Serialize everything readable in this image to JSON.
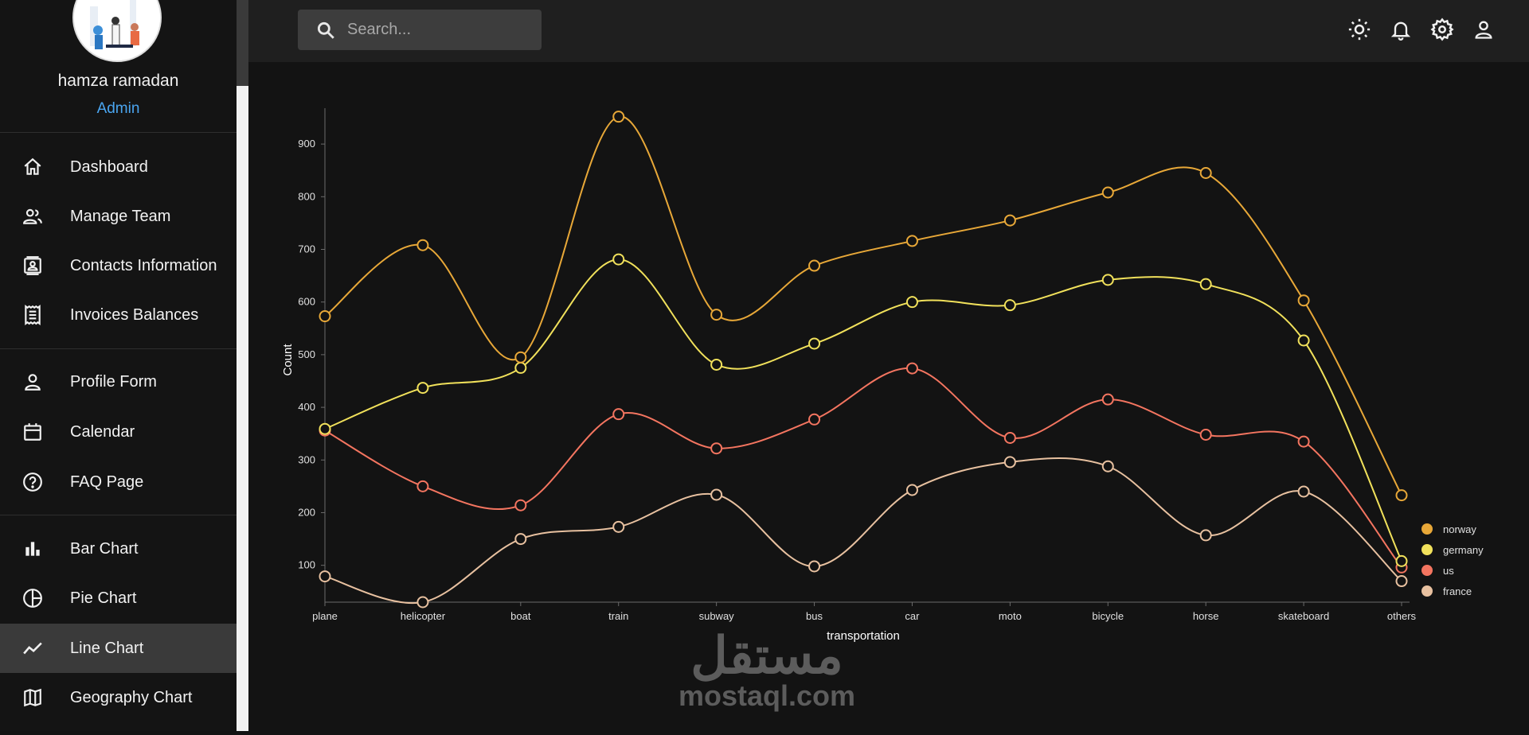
{
  "user": {
    "name": "hamza ramadan",
    "role": "Admin"
  },
  "nav": [
    {
      "id": "dashboard",
      "label": "Dashboard",
      "icon": "home-icon"
    },
    {
      "id": "manage-team",
      "label": "Manage Team",
      "icon": "people-icon"
    },
    {
      "id": "contacts",
      "label": "Contacts Information",
      "icon": "contacts-icon"
    },
    {
      "id": "invoices",
      "label": "Invoices Balances",
      "icon": "receipt-icon"
    },
    {
      "id": "profile-form",
      "label": "Profile Form",
      "icon": "person-icon"
    },
    {
      "id": "calendar",
      "label": "Calendar",
      "icon": "calendar-icon"
    },
    {
      "id": "faq",
      "label": "FAQ Page",
      "icon": "help-icon"
    },
    {
      "id": "bar-chart",
      "label": "Bar Chart",
      "icon": "bar-chart-icon"
    },
    {
      "id": "pie-chart",
      "label": "Pie Chart",
      "icon": "pie-chart-icon"
    },
    {
      "id": "line-chart",
      "label": "Line Chart",
      "icon": "line-chart-icon",
      "active": true
    },
    {
      "id": "geography-chart",
      "label": "Geography Chart",
      "icon": "map-icon"
    }
  ],
  "search": {
    "placeholder": "Search..."
  },
  "topbar_icons": [
    "light-mode-icon",
    "notifications-icon",
    "settings-icon",
    "account-icon"
  ],
  "watermark": {
    "arabic": "مستقل",
    "latin": "mostaql.com"
  },
  "colors": {
    "norway": "#e8a838",
    "germany": "#f1e15b",
    "us": "#f47560",
    "france": "#e8c1a0",
    "legend_norway": "#e8a838",
    "legend_germany": "#f1e15b",
    "legend_us": "#f47560",
    "legend_france": "#e8c1a0"
  },
  "chart_data": {
    "type": "line",
    "xlabel": "transportation",
    "ylabel": "Count",
    "categories": [
      "plane",
      "helicopter",
      "boat",
      "train",
      "subway",
      "bus",
      "car",
      "moto",
      "bicycle",
      "horse",
      "skateboard",
      "others"
    ],
    "ylim": [
      30,
      950
    ],
    "yticks": [
      100,
      200,
      300,
      400,
      500,
      600,
      700,
      800,
      900
    ],
    "legend_position": "bottom-right",
    "series": [
      {
        "name": "norway",
        "values": [
          573,
          708,
          495,
          952,
          576,
          669,
          716,
          755,
          808,
          845,
          603,
          233
        ]
      },
      {
        "name": "germany",
        "values": [
          359,
          437,
          475,
          681,
          481,
          521,
          600,
          594,
          642,
          634,
          527,
          108
        ]
      },
      {
        "name": "us",
        "values": [
          356,
          250,
          214,
          387,
          322,
          377,
          474,
          342,
          415,
          348,
          335,
          96
        ]
      },
      {
        "name": "france",
        "values": [
          79,
          30,
          150,
          173,
          234,
          98,
          243,
          296,
          288,
          157,
          240,
          70
        ]
      }
    ]
  }
}
